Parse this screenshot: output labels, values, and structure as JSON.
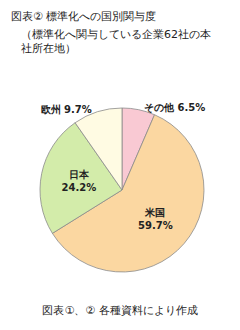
{
  "chart_data": {
    "type": "pie",
    "title": "図表② 標準化への国別関与度",
    "subtitle": "（標準化へ関与している企業62社の本社所在地）",
    "annotations": [
      "図表①、② 各種資料により作成"
    ],
    "categories": [
      "その他",
      "米国",
      "日本",
      "欧州"
    ],
    "values": [
      6.5,
      59.7,
      24.2,
      9.7
    ],
    "value_labels": [
      "6.5%",
      "59.7%",
      "24.2%",
      "9.7%"
    ],
    "colors": [
      "#f9c9d3",
      "#fbd7a1",
      "#d3ecaa",
      "#fffbe3"
    ],
    "data_labels": true
  }
}
